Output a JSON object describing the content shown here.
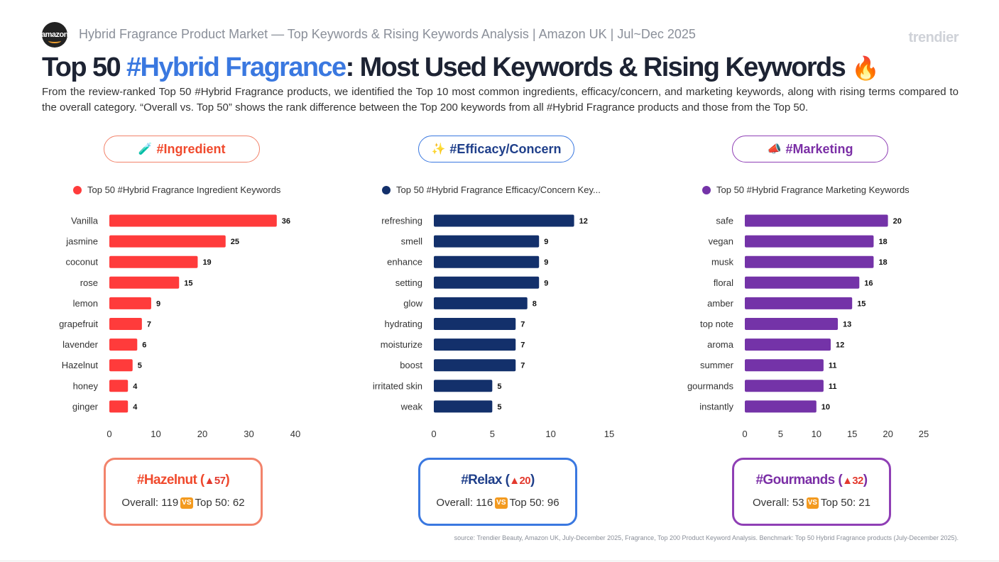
{
  "header": {
    "logo_text": "amazon",
    "subtitle": "Hybrid Fragrance Product Market — Top Keywords & Rising Keywords Analysis | Amazon UK | Jul~Dec 2025",
    "brand": "trendier",
    "title_prefix": "Top 50 ",
    "title_highlight": "#Hybrid Fragrance",
    "title_suffix": ": Most Used Keywords & Rising Keywords",
    "title_emoji": "🔥",
    "description": "From the review-ranked Top 50 #Hybrid Fragrance products, we identified the Top 10 most common ingredients, efficacy/concern, and marketing keywords, along with rising terms compared to the overall category. “Overall vs. Top 50” shows the rank difference between the Top 200 keywords from all #Hybrid Fragrance products and those from the Top 50."
  },
  "sections": [
    {
      "pill_icon": "🧪",
      "pill_label": "#Ingredient",
      "color": "#ff3b3b",
      "border": "#f2836b",
      "text_color": "#f04a2d",
      "rising_keyword": "#Hazelnut",
      "rising_change": "▲57",
      "overall_label": "Overall: 119",
      "vs": "VS",
      "top50_label": "Top 50: 62"
    },
    {
      "pill_icon": "✨",
      "pill_label": "#Efficacy/Concern",
      "color": "#13306b",
      "border": "#3a78e0",
      "text_color": "#1f3f8a",
      "rising_keyword": "#Relax",
      "rising_change": "▲20",
      "overall_label": "Overall: 116",
      "vs": "VS",
      "top50_label": "Top 50: 96"
    },
    {
      "pill_icon": "📣",
      "pill_label": "#Marketing",
      "color": "#7433a8",
      "border": "#8f3fb5",
      "text_color": "#7b2fa6",
      "rising_keyword": "#Gourmands",
      "rising_change": "▲32",
      "overall_label": "Overall: 53",
      "vs": "VS",
      "top50_label": "Top 50: 21"
    }
  ],
  "chart_data": [
    {
      "type": "bar",
      "orientation": "horizontal",
      "color": "#ff3b3b",
      "legend": "Top 50 #Hybrid Fragrance Ingredient Keywords",
      "categories": [
        "Vanilla",
        "jasmine",
        "coconut",
        "rose",
        "lemon",
        "grapefruit",
        "lavender",
        "Hazelnut",
        "honey",
        "ginger"
      ],
      "values": [
        36,
        25,
        19,
        15,
        9,
        7,
        6,
        5,
        4,
        4
      ],
      "xlim": [
        0,
        40
      ],
      "xticks": [
        0,
        10,
        20,
        30,
        40
      ]
    },
    {
      "type": "bar",
      "orientation": "horizontal",
      "color": "#13306b",
      "legend": "Top 50 #Hybrid Fragrance Efficacy/Concern Key...",
      "categories": [
        "refreshing",
        "smell",
        "enhance",
        "setting",
        "glow",
        "hydrating",
        "moisturize",
        "boost",
        "irritated skin",
        "weak"
      ],
      "values": [
        12,
        9,
        9,
        9,
        8,
        7,
        7,
        7,
        5,
        5
      ],
      "xlim": [
        0,
        15
      ],
      "xticks": [
        0,
        5,
        10,
        15
      ]
    },
    {
      "type": "bar",
      "orientation": "horizontal",
      "color": "#7433a8",
      "legend": "Top 50 #Hybrid Fragrance Marketing Keywords",
      "categories": [
        "safe",
        "vegan",
        "musk",
        "floral",
        "amber",
        "top note",
        "aroma",
        "summer",
        "gourmands",
        "instantly"
      ],
      "values": [
        20,
        18,
        18,
        16,
        15,
        13,
        12,
        11,
        11,
        10
      ],
      "xlim": [
        0,
        25
      ],
      "xticks": [
        0,
        5,
        10,
        15,
        20,
        25
      ]
    }
  ],
  "footer": {
    "source": "source: Trendier Beauty, Amazon UK, July-December 2025, Fragrance, Top 200 Product Keyword Analysis. Benchmark: Top 50 Hybrid Fragrance products (July-December 2025)."
  }
}
